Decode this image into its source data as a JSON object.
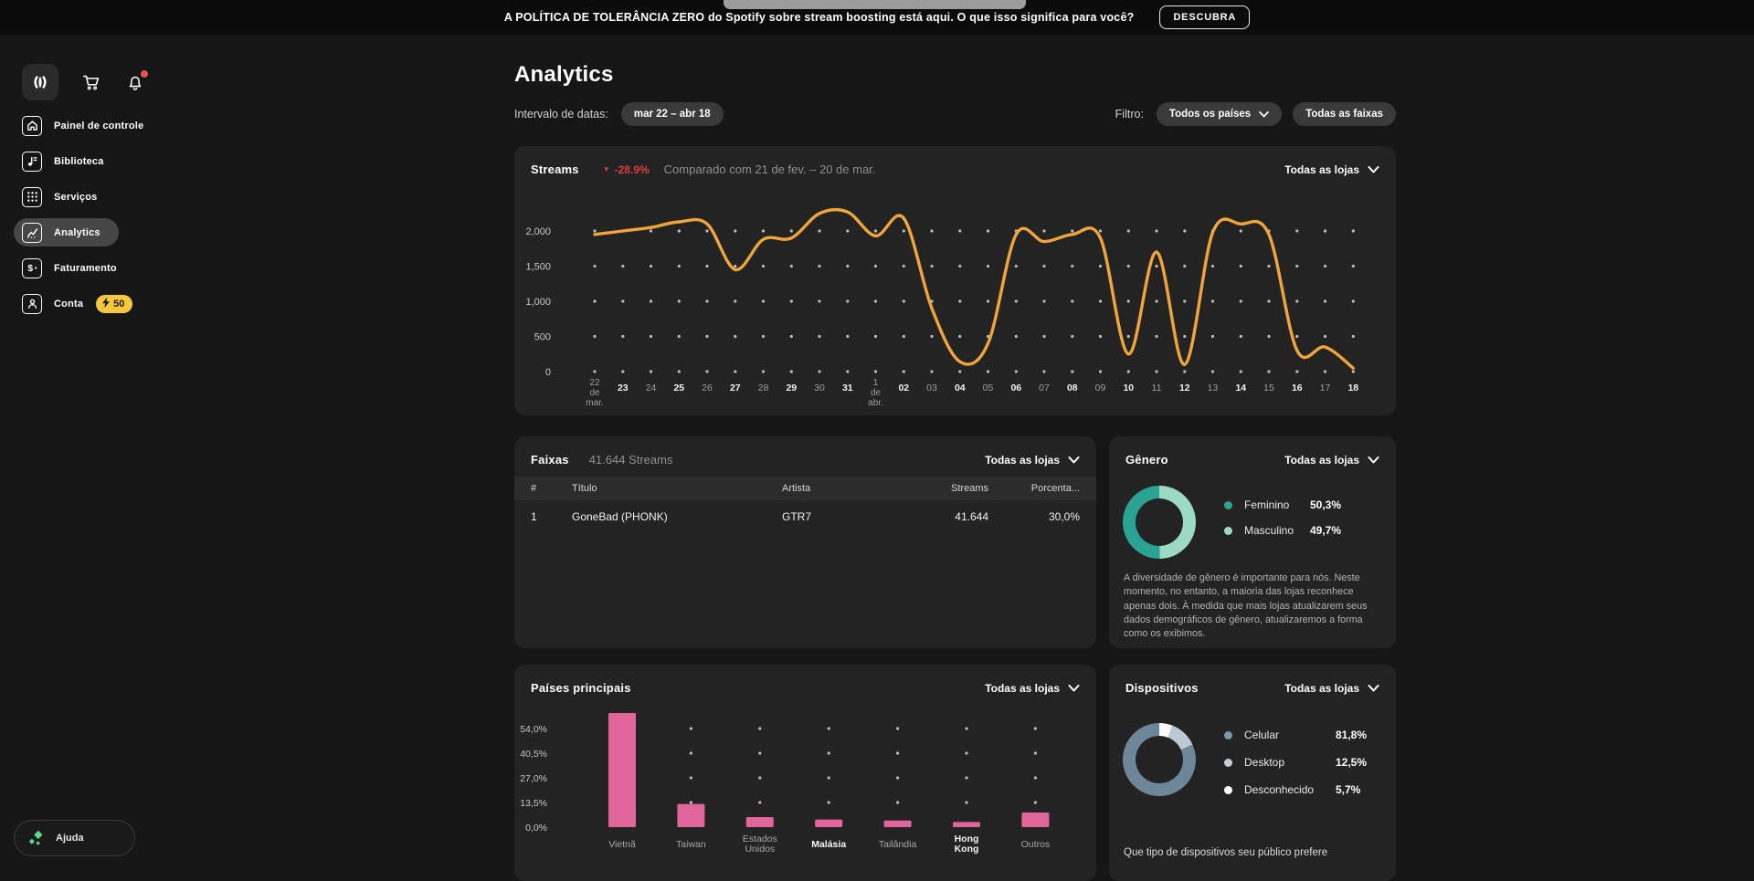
{
  "top_bar": {
    "message": "A POLÍTICA DE TOLERÂNCIA ZERO do Spotify sobre stream boosting está aqui. O que isso significa para você?",
    "cta": "DESCUBRA"
  },
  "sidebar": {
    "items": [
      {
        "id": "dashboard",
        "label": "Painel de controle",
        "icon": "home-icon",
        "selected": false
      },
      {
        "id": "library",
        "label": "Biblioteca",
        "icon": "library-icon",
        "selected": false
      },
      {
        "id": "services",
        "label": "Serviços",
        "icon": "services-icon",
        "selected": false
      },
      {
        "id": "analytics",
        "label": "Analytics",
        "icon": "analytics-icon",
        "selected": true
      },
      {
        "id": "billing",
        "label": "Faturamento",
        "icon": "billing-icon",
        "selected": false
      },
      {
        "id": "account",
        "label": "Conta",
        "icon": "account-icon",
        "selected": false,
        "badge": "50"
      }
    ],
    "help_label": "Ajuda"
  },
  "header": {
    "title": "Analytics",
    "date_range_label": "Intervalo de datas:",
    "date_range_value": "mar 22 – abr 18",
    "filter_label": "Filtro:",
    "filter_countries": "Todos os países",
    "filter_tracks": "Todas as faixas"
  },
  "store_filter": {
    "label": "Todas as lojas"
  },
  "streams_card": {
    "title": "Streams",
    "change": "-28.9%",
    "compare": "Comparado com 21 de fev. – 20 de mar.",
    "chart_data": {
      "type": "line",
      "x": [
        [
          "22",
          "de",
          "mar."
        ],
        "23",
        "24",
        "25",
        "26",
        "27",
        "28",
        "29",
        "30",
        "31",
        [
          "1",
          "de",
          "abr."
        ],
        "02",
        "03",
        "04",
        "05",
        "06",
        "07",
        "08",
        "09",
        "10",
        "11",
        "12",
        "13",
        "14",
        "15",
        "16",
        "17",
        "18"
      ],
      "values": [
        1950,
        2000,
        2050,
        2130,
        2100,
        1450,
        1880,
        1900,
        2250,
        2270,
        1930,
        2180,
        900,
        140,
        400,
        1950,
        1850,
        1950,
        1900,
        250,
        1700,
        100,
        1980,
        2100,
        1950,
        300,
        350,
        50
      ],
      "y_ticks": [
        "0",
        "500",
        "1,000",
        "1,500",
        "2,000"
      ],
      "ylim": [
        0,
        2000
      ],
      "line_color": "#f0a43c",
      "grid": "dotted"
    }
  },
  "tracks_card": {
    "title": "Faixas",
    "subtitle": "41.644 Streams",
    "columns": [
      "#",
      "Título",
      "Artista",
      "Streams",
      "Porcenta..."
    ],
    "rows": [
      [
        "1",
        "GoneBad (PHONK)",
        "GTR7",
        "41.644",
        "30,0%"
      ]
    ]
  },
  "gender_card": {
    "title": "Gênero",
    "legend": [
      {
        "label": "Feminino",
        "value": "50,3%",
        "color": "#2aa392"
      },
      {
        "label": "Masculino",
        "value": "49,7%",
        "color": "#9cdac6"
      }
    ],
    "description": "A diversidade de gênero é importante para nós. Neste momento, no entanto, a maioria das lojas reconhece apenas dois. À medida que mais lojas atualizarem seus dados demográficos de gênero, atualizaremos a forma como os exibimos.",
    "chart_data": {
      "type": "pie",
      "donut": true,
      "slices": [
        {
          "label": "Masculino",
          "value": 49.7,
          "color": "#9cdac6"
        },
        {
          "label": "Feminino",
          "value": 50.3,
          "color": "#2aa392"
        }
      ]
    }
  },
  "countries_card": {
    "title": "Países principais",
    "chart_data": {
      "type": "bar",
      "categories": [
        "Vietnã",
        "Taiwan",
        [
          "Estados",
          "Unidos"
        ],
        "Malásia",
        "Tailândia",
        [
          "Hong",
          "Kong"
        ],
        "Outros"
      ],
      "values": [
        62.5,
        12.7,
        5.5,
        4.2,
        3.6,
        2.8,
        8.0
      ],
      "emphasis": [
        false,
        false,
        false,
        true,
        false,
        true,
        false
      ],
      "y_ticks": [
        "0,0%",
        "13,5%",
        "27,0%",
        "40,5%",
        "54,0%"
      ],
      "tick_step_pct": 13.5,
      "bar_color": "#e0659a",
      "grid": "dotted"
    }
  },
  "devices_card": {
    "title": "Dispositivos",
    "legend": [
      {
        "label": "Celular",
        "value": "81,8%",
        "color": "#7d97a8"
      },
      {
        "label": "Desktop",
        "value": "12,5%",
        "color": "#c3cfd8"
      },
      {
        "label": "Desconhecido",
        "value": "5,7%",
        "color": "#ffffff"
      }
    ],
    "footer": "Que tipo de dispositivos seu público prefere",
    "chart_data": {
      "type": "pie",
      "donut": true,
      "slices": [
        {
          "label": "Desconhecido",
          "value": 5.7,
          "color": "#ffffff"
        },
        {
          "label": "Desktop",
          "value": 12.5,
          "color": "#bcc9d4"
        },
        {
          "label": "Celular",
          "value": 81.8,
          "color": "#6d8799"
        }
      ]
    }
  }
}
